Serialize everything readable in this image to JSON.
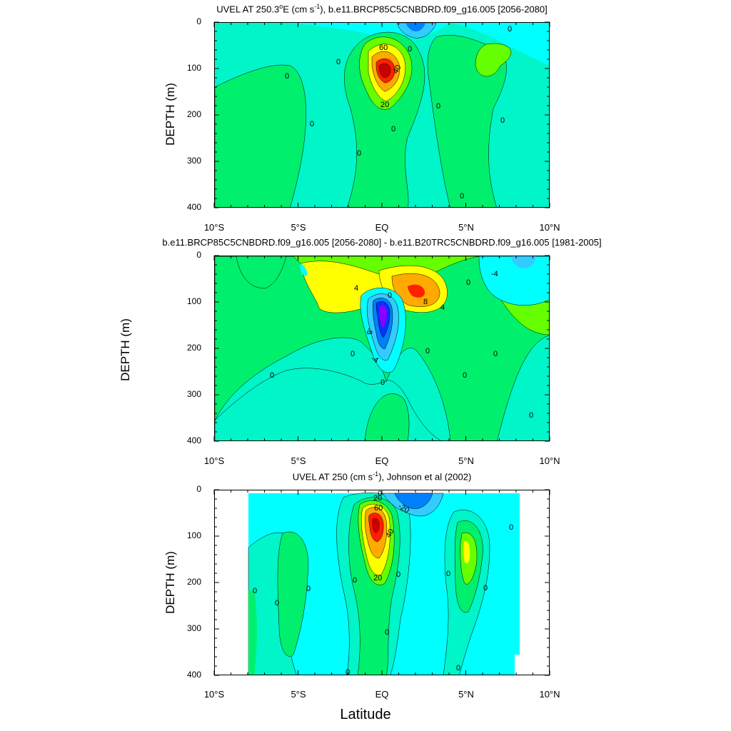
{
  "chart_data": [
    {
      "type": "contour",
      "title": "UVEL AT 250.3°E (cm s⁻¹), b.e11.BRCP85C5CNBDRD.f09_g16.005 [2056-2080]",
      "title_parts": {
        "pre": "UVEL AT 250.3",
        "deg": "o",
        "mid": "E (cm s",
        "exp": "-1",
        "post": "), b.e11.BRCP85C5CNBDRD.f09_g16.005 [2056-2080]"
      },
      "ylabel": "DEPTH (m)",
      "xlim": [
        -10,
        10
      ],
      "ylim": [
        400,
        0
      ],
      "yticks": [
        "0",
        "100",
        "200",
        "300",
        "400"
      ],
      "xticks": [
        "10°S",
        "5°S",
        "EQ",
        "5°N",
        "10°N"
      ],
      "contour_labels": [
        "60",
        "40",
        "20",
        "0",
        "0",
        "0",
        "0",
        "0",
        "0",
        "0",
        "0",
        "0",
        "0"
      ],
      "core_max_approx": 90,
      "core_location": {
        "lat": 0,
        "depth": 85
      }
    },
    {
      "type": "contour",
      "title": "b.e11.BRCP85C5CNBDRD.f09_g16.005 [2056-2080] - b.e11.B20TRC5CNBDRD.f09_g16.005 [1981-2005]",
      "ylabel": "DEPTH (m)",
      "xlim": [
        -10,
        10
      ],
      "ylim": [
        400,
        0
      ],
      "yticks": [
        "0",
        "100",
        "200",
        "300",
        "400"
      ],
      "xticks": [
        "10°S",
        "5°S",
        "EQ",
        "5°N",
        "10°N"
      ],
      "contour_labels": [
        "4",
        "0",
        "8",
        "4",
        "-4",
        "-8",
        "-4",
        "0",
        "0",
        "0",
        "0",
        "0",
        "0",
        "0",
        "0"
      ],
      "min_core": {
        "lat": 0,
        "depth": 120
      },
      "max_core": {
        "lat": 2,
        "depth": 70
      }
    },
    {
      "type": "contour",
      "title": "UVEL AT 250 (cm s⁻¹), Johnson et al (2002)",
      "title_parts": {
        "pre": "UVEL AT 250 (cm s",
        "exp": "-1",
        "post": "), Johnson et al (2002)"
      },
      "ylabel": "DEPTH (m)",
      "xlabel": "Latitude",
      "xlim": [
        -10,
        10
      ],
      "ylim": [
        400,
        0
      ],
      "yticks": [
        "0",
        "100",
        "200",
        "300",
        "400"
      ],
      "xticks": [
        "10°S",
        "5°S",
        "EQ",
        "5°N",
        "10°N"
      ],
      "data_extent_lat": [
        -8,
        8
      ],
      "contour_labels": [
        "20",
        "60",
        "40",
        "20",
        "-20",
        "0",
        "0",
        "0",
        "0",
        "0",
        "0",
        "0",
        "0",
        "0",
        "0",
        "0",
        "0"
      ],
      "core_max_approx": 80,
      "core_location": {
        "lat": -0.2,
        "depth": 75
      }
    }
  ],
  "xaxis_label": "Latitude",
  "colors": {
    "cyan": "#00ffff",
    "teal": "#00f5c8",
    "green": "#00f06e",
    "lime": "#66ff00",
    "yellow": "#ffff00",
    "orange": "#ffaa00",
    "red": "#ff2000",
    "darkred": "#c80000",
    "lightblue": "#33ccff",
    "blue": "#0080ff",
    "deepblue": "#0033ff",
    "violet": "#8800ff"
  }
}
